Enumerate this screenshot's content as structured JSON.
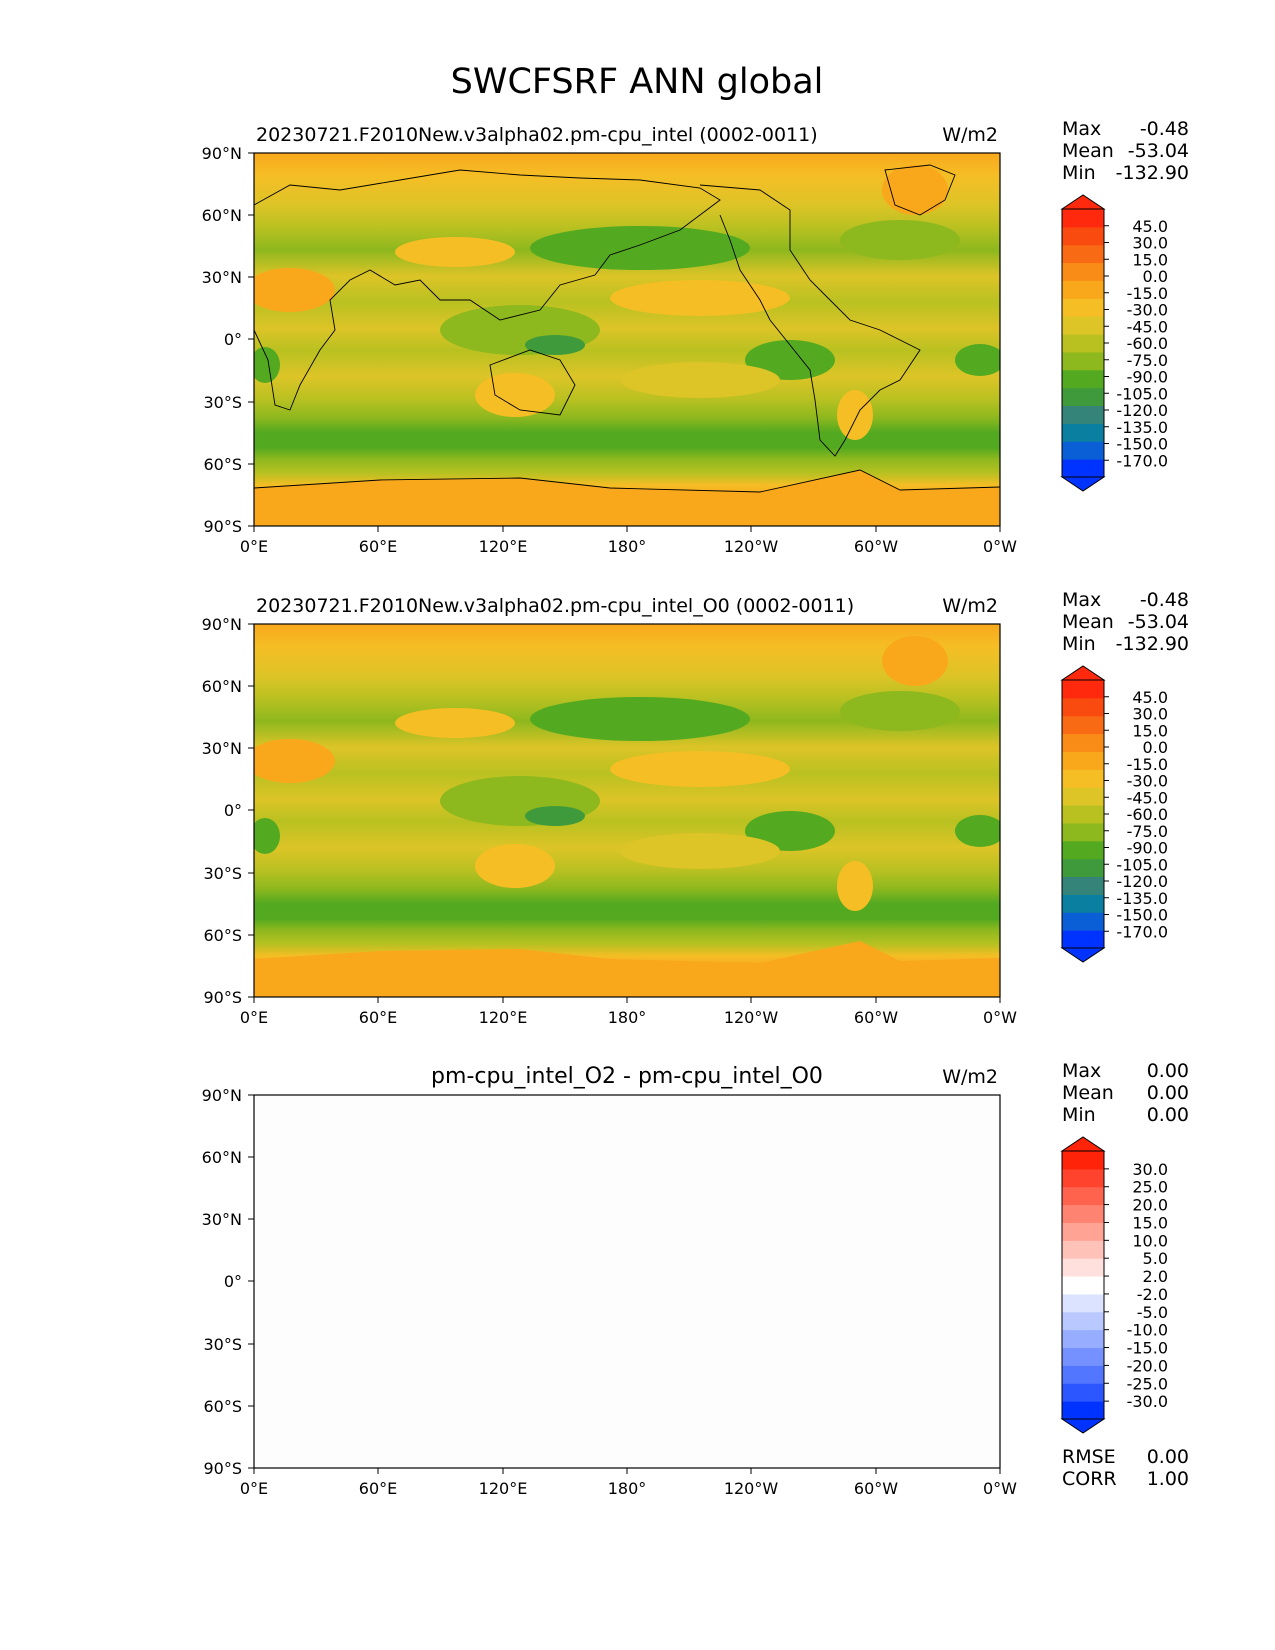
{
  "figure": {
    "title": "SWCFSRF ANN global"
  },
  "colors": {
    "ocean_cloud_levels": [
      "#0033ff",
      "#0b5fd6",
      "#0b7fa0",
      "#358479",
      "#3f9a3c",
      "#53a920",
      "#8db81e",
      "#b9c121",
      "#ddc427",
      "#f5be25",
      "#f9a81c",
      "#f98c17",
      "#f96a14",
      "#f94a10",
      "#ff2a0d"
    ],
    "diff_levels": [
      "#0033ff",
      "#2c56ff",
      "#5276ff",
      "#7591ff",
      "#97adff",
      "#b9c8ff",
      "#dbe3ff",
      "#ffffff",
      "#ffe0dc",
      "#ffc2b9",
      "#ffa395",
      "#ff8371",
      "#ff634e",
      "#ff432c",
      "#ff230a"
    ],
    "land": "#000000"
  },
  "chart_data": [
    {
      "type": "heatmap",
      "panel": "test",
      "title": "20230721.F2010New.v3alpha02.pm-cpu_intel (0002-0011)",
      "units": "W/m2",
      "x_ticks": [
        "0°E",
        "60°E",
        "120°E",
        "180°",
        "120°W",
        "60°W",
        "0°W"
      ],
      "y_ticks": [
        "90°N",
        "60°N",
        "30°N",
        "0°",
        "30°S",
        "60°S",
        "90°S"
      ],
      "xlim": [
        0,
        360
      ],
      "ylim": [
        -90,
        90
      ],
      "stats": {
        "max_label": "Max",
        "max": "-0.48",
        "mean_label": "Mean",
        "mean": "-53.04",
        "min_label": "Min",
        "min": "-132.90"
      },
      "colorbar": {
        "levels": [
          -170.0,
          -150.0,
          -135.0,
          -120.0,
          -105.0,
          -90.0,
          -75.0,
          -60.0,
          -45.0,
          -30.0,
          -15.0,
          0.0,
          15.0,
          30.0,
          45.0
        ],
        "labels": [
          "-170.0",
          "-150.0",
          "-135.0",
          "-120.0",
          "-105.0",
          "-90.0",
          "-75.0",
          "-60.0",
          "-45.0",
          "-30.0",
          "-15.0",
          "0.0",
          "15.0",
          "30.0",
          "45.0"
        ]
      }
    },
    {
      "type": "heatmap",
      "panel": "reference",
      "title": "20230721.F2010New.v3alpha02.pm-cpu_intel_O0 (0002-0011)",
      "units": "W/m2",
      "x_ticks": [
        "0°E",
        "60°E",
        "120°E",
        "180°",
        "120°W",
        "60°W",
        "0°W"
      ],
      "y_ticks": [
        "90°N",
        "60°N",
        "30°N",
        "0°",
        "30°S",
        "60°S",
        "90°S"
      ],
      "xlim": [
        0,
        360
      ],
      "ylim": [
        -90,
        90
      ],
      "stats": {
        "max_label": "Max",
        "max": "-0.48",
        "mean_label": "Mean",
        "mean": "-53.04",
        "min_label": "Min",
        "min": "-132.90"
      },
      "colorbar": {
        "levels": [
          -170.0,
          -150.0,
          -135.0,
          -120.0,
          -105.0,
          -90.0,
          -75.0,
          -60.0,
          -45.0,
          -30.0,
          -15.0,
          0.0,
          15.0,
          30.0,
          45.0
        ],
        "labels": [
          "-170.0",
          "-150.0",
          "-135.0",
          "-120.0",
          "-105.0",
          "-90.0",
          "-75.0",
          "-60.0",
          "-45.0",
          "-30.0",
          "-15.0",
          "0.0",
          "15.0",
          "30.0",
          "45.0"
        ]
      }
    },
    {
      "type": "heatmap",
      "panel": "difference",
      "title": "pm-cpu_intel_O2 - pm-cpu_intel_O0",
      "units": "W/m2",
      "x_ticks": [
        "0°E",
        "60°E",
        "120°E",
        "180°",
        "120°W",
        "60°W",
        "0°W"
      ],
      "y_ticks": [
        "90°N",
        "60°N",
        "30°N",
        "0°",
        "30°S",
        "60°S",
        "90°S"
      ],
      "xlim": [
        0,
        360
      ],
      "ylim": [
        -90,
        90
      ],
      "stats": {
        "max_label": "Max",
        "max": "0.00",
        "mean_label": "Mean",
        "mean": "0.00",
        "min_label": "Min",
        "min": "0.00"
      },
      "extra_stats": {
        "rmse_label": "RMSE",
        "rmse": "0.00",
        "corr_label": "CORR",
        "corr": "1.00"
      },
      "colorbar": {
        "levels": [
          -30.0,
          -25.0,
          -20.0,
          -15.0,
          -10.0,
          -5.0,
          -2.0,
          2.0,
          5.0,
          10.0,
          15.0,
          20.0,
          25.0,
          30.0
        ],
        "labels": [
          "-30.0",
          "-25.0",
          "-20.0",
          "-15.0",
          "-10.0",
          "-5.0",
          "-2.0",
          "2.0",
          "5.0",
          "10.0",
          "15.0",
          "20.0",
          "25.0",
          "30.0"
        ]
      }
    }
  ]
}
